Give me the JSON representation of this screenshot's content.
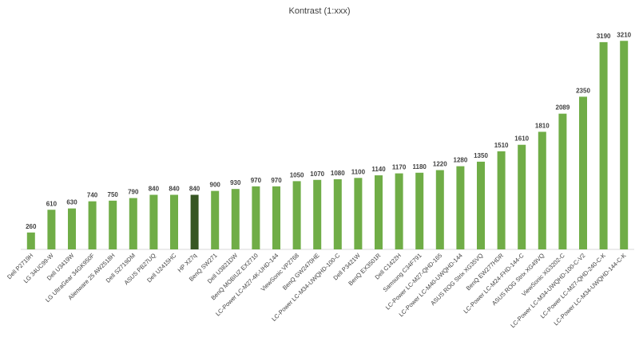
{
  "chart_data": {
    "type": "bar",
    "title": "Kontrast (1:xxx)",
    "categories": [
      "Dell P2719H",
      "LG 34UC99-W",
      "Dell U3419W",
      "LG UltraGear 34GK950F",
      "Alienware 25 AW2518H",
      "Dell S2719DM",
      "ASUS PB27UQ",
      "Dell U2415HC",
      "HP X27q",
      "BenQ SW271",
      "Dell U3821DW",
      "BenQ MOBIUZ EX2710",
      "LC-Power LC-M27-4K-UHD-144",
      "ViewSonic VP2768",
      "BenQ GW2470HE",
      "LC-Power LC-M34-UWQHD-100-C",
      "Dell P3421W",
      "BenQ EX3501R",
      "Dell C1422H",
      "Samsung C34F791",
      "LC-Power LC-M27-QHD-165",
      "LC-Power LC-M40-UWQHD-144",
      "ASUS ROG Strix XG35VQ",
      "BenQ EW277HDR",
      "LC-Power LC-M24-FHD-144-C",
      "ASUS ROG Strix XG49VQ",
      "ViewSonic XG3202-C",
      "LC-Power LC-M34-UWQHD-100-C-V2",
      "LC-Power LC-M27-QHD-240-C-K",
      "LC-Power LC-M34-UWQHD-144-C-K"
    ],
    "values": [
      260,
      610,
      630,
      740,
      750,
      790,
      840,
      840,
      840,
      900,
      930,
      970,
      970,
      1050,
      1070,
      1080,
      1100,
      1140,
      1170,
      1180,
      1220,
      1280,
      1350,
      1510,
      1610,
      1810,
      2089,
      2350,
      3190,
      3210
    ],
    "highlight_index": 8,
    "ylim": [
      0,
      3250
    ],
    "grid": false,
    "legend": "none",
    "colors": {
      "bar": "#70ad47",
      "highlight": "#375623",
      "text": "#404040",
      "axis": "#d9d9d9"
    }
  }
}
